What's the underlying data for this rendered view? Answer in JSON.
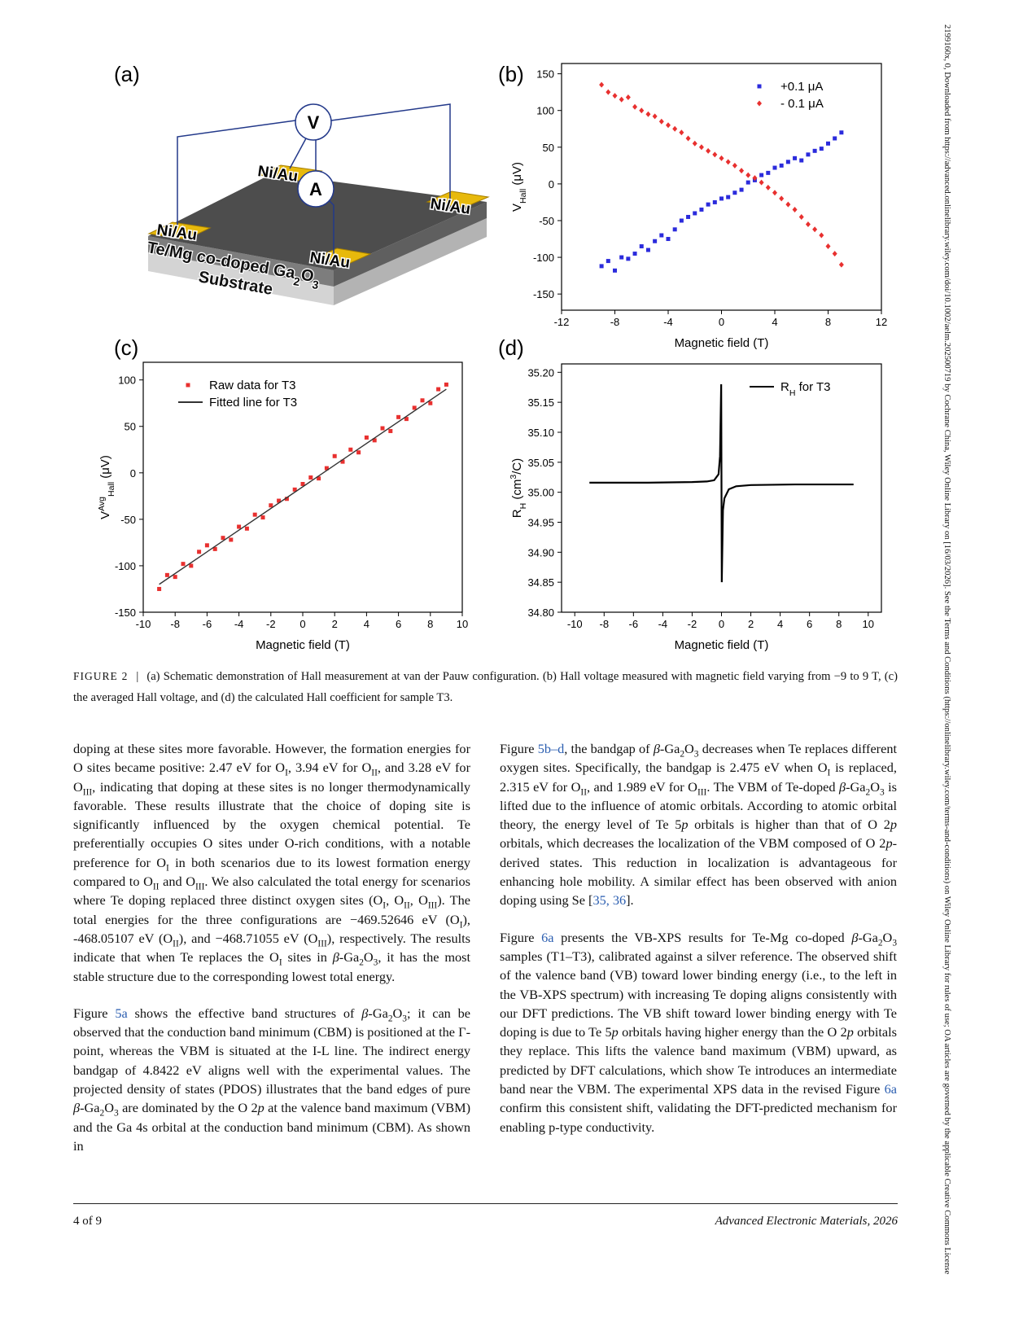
{
  "side_note": "2199160x, 0, Downloaded from https://advanced.onlinelibrary.wiley.com/doi/10.1002/aelm.202500719 by Cochrane China, Wiley Online Library on [16/03/2026]. See the Terms and Conditions (https://onlinelibrary.wiley.com/terms-and-conditions) on Wiley Online Library for rules of use; OA articles are governed by the applicable Creative Commons License",
  "figure": {
    "panel_labels": [
      "(a)",
      "(b)",
      "(c)",
      "(d)"
    ],
    "schematic": {
      "meter_v": "V",
      "meter_a": "A",
      "contacts": [
        "Ni/Au",
        "Ni/Au",
        "Ni/Au",
        "Ni/Au"
      ],
      "layer": [
        "Te/Mg co-doped Ga",
        [
          "sub",
          "2"
        ],
        "O",
        [
          "sub",
          "3"
        ]
      ],
      "substrate": "Substrate"
    }
  },
  "chart_data": [
    {
      "type": "scatter",
      "x": [
        -9,
        -8.5,
        -8,
        -7.5,
        -7,
        -6.5,
        -6,
        -5.5,
        -5,
        -4.5,
        -4,
        -3.5,
        -3,
        -2.5,
        -2,
        -1.5,
        -1,
        -0.5,
        0,
        0.5,
        1,
        1.5,
        2,
        2.5,
        3,
        3.5,
        4,
        4.5,
        5,
        5.5,
        6,
        6.5,
        7,
        7.5,
        8,
        8.5,
        9
      ],
      "xlim": [
        -12,
        12
      ],
      "xticks": [
        -12,
        -8,
        -4,
        0,
        4,
        8,
        12
      ],
      "ylim": [
        -172,
        164
      ],
      "yticks": [
        -150,
        -100,
        -50,
        0,
        50,
        100,
        150
      ],
      "xlabel": "Magnetic field (T)",
      "ylabel": [
        "V",
        [
          "sub",
          "Hall"
        ],
        " (μV)"
      ],
      "legend": "upper right",
      "series": [
        {
          "name": "+0.1 μA",
          "color": "#2b2bdc",
          "marker": "square",
          "values": [
            -112,
            -105,
            -118,
            -100,
            -102,
            -95,
            -85,
            -90,
            -78,
            -70,
            -75,
            -62,
            -50,
            -45,
            -40,
            -35,
            -28,
            -25,
            -20,
            -18,
            -12,
            -8,
            2,
            5,
            12,
            15,
            22,
            25,
            30,
            35,
            32,
            40,
            45,
            48,
            55,
            62,
            70
          ]
        },
        {
          "name": "- 0.1 μA",
          "color": "#e8302f",
          "marker": "diamond",
          "values": [
            135,
            125,
            120,
            115,
            118,
            105,
            100,
            95,
            92,
            85,
            80,
            75,
            70,
            62,
            55,
            50,
            45,
            40,
            35,
            30,
            25,
            18,
            12,
            8,
            2,
            -5,
            -12,
            -20,
            -28,
            -35,
            -45,
            -55,
            -62,
            -70,
            -85,
            -95,
            -110
          ]
        }
      ]
    },
    {
      "type": "scatter",
      "x": [
        -9,
        -8.5,
        -8,
        -7.5,
        -7,
        -6.5,
        -6,
        -5.5,
        -5,
        -4.5,
        -4,
        -3.5,
        -3,
        -2.5,
        -2,
        -1.5,
        -1,
        -0.5,
        0,
        0.5,
        1,
        1.5,
        2,
        2.5,
        3,
        3.5,
        4,
        4.5,
        5,
        5.5,
        6,
        6.5,
        7,
        7.5,
        8,
        8.5,
        9
      ],
      "xlim": [
        -10,
        10
      ],
      "xticks": [
        -10,
        -8,
        -6,
        -4,
        -2,
        0,
        2,
        4,
        6,
        8,
        10
      ],
      "ylim": [
        -150,
        119
      ],
      "yticks": [
        -150,
        -100,
        -50,
        0,
        50,
        100
      ],
      "xlabel": "Magnetic field (T)",
      "ylabel": [
        "V",
        [
          "sup",
          "Avg"
        ],
        [
          "sub",
          "Hall"
        ],
        " (μV)"
      ],
      "legend": "upper left",
      "series": [
        {
          "name": "Raw data for T3",
          "color": "#e8302f",
          "marker": "square",
          "values": [
            -125,
            -110,
            -112,
            -98,
            -100,
            -85,
            -78,
            -82,
            -70,
            -72,
            -58,
            -60,
            -45,
            -48,
            -35,
            -30,
            -28,
            -18,
            -12,
            -5,
            -6,
            5,
            18,
            12,
            25,
            22,
            38,
            35,
            48,
            45,
            60,
            58,
            70,
            78,
            75,
            90,
            95
          ]
        },
        {
          "name": "Fitted line for T3",
          "color": "#333333",
          "marker": "line",
          "x": [
            -9,
            9
          ],
          "values": [
            -120,
            90
          ]
        }
      ]
    },
    {
      "type": "line",
      "x": [
        -9,
        -5,
        -2,
        -1,
        -0.5,
        -0.2,
        -0.1,
        -0.02,
        0.02,
        0.1,
        0.2,
        0.5,
        1,
        2,
        5,
        9
      ],
      "xlim": [
        -10.9,
        10.9
      ],
      "xticks": [
        -10,
        -8,
        -6,
        -4,
        -2,
        0,
        2,
        4,
        6,
        8,
        10
      ],
      "ylim": [
        34.8,
        35.214
      ],
      "yticks": [
        {
          "value": 34.8,
          "label": "34.80"
        },
        34.85,
        {
          "value": 34.9,
          "label": "34.90"
        },
        34.95,
        {
          "value": 35,
          "label": "35.00"
        },
        35.05,
        {
          "value": 35.1,
          "label": "35.10"
        },
        35.15,
        {
          "value": 35.2,
          "label": "35.20"
        }
      ],
      "xlabel": "Magnetic field (T)",
      "ylabel": [
        "R",
        [
          "sub",
          "H"
        ],
        " (cm",
        [
          "sup",
          "3"
        ],
        "/C)"
      ],
      "legend": "upper right",
      "series": [
        {
          "name": [
            "R",
            [
              "sub",
              "H"
            ],
            " for T3"
          ],
          "color": "#000000",
          "marker": "line",
          "values": [
            35.016,
            35.016,
            35.017,
            35.018,
            35.02,
            35.03,
            35.06,
            35.18,
            34.85,
            34.97,
            34.99,
            35.005,
            35.01,
            35.012,
            35.013,
            35.013
          ]
        }
      ]
    }
  ],
  "caption": {
    "label": "FIGURE 2",
    "separator": "|",
    "text": "(a) Schematic demonstration of Hall measurement at van der Pauw configuration. (b) Hall voltage measured with magnetic field varying from −9 to 9 T, (c) the averaged Hall voltage, and (d) the calculated Hall coefficient for sample T3."
  },
  "columns": [
    [
      [
        "doping at these sites more favorable. However, the formation energies for O sites became positive: 2.47 eV for O",
        [
          "sub",
          "I"
        ],
        ", 3.94 eV for O",
        [
          "sub",
          "II"
        ],
        ", and 3.28 eV for O",
        [
          "sub",
          "III"
        ],
        ", indicating that doping at these sites is no longer thermodynamically favorable. These results illustrate that the choice of doping site is significantly influenced by the oxygen chemical potential. Te preferentially occupies O sites under O-rich conditions, with a notable preference for O",
        [
          "sub",
          "I"
        ],
        " in both scenarios due to its lowest formation energy compared to O",
        [
          "sub",
          "II"
        ],
        " and O",
        [
          "sub",
          "III"
        ],
        ". We also calculated the total energy for scenarios where Te doping replaced three distinct oxygen sites (O",
        [
          "sub",
          "I"
        ],
        ", O",
        [
          "sub",
          "II"
        ],
        ", O",
        [
          "sub",
          "III"
        ],
        "). The total energies for the three configurations are −469.52646 eV (O",
        [
          "sub",
          "I"
        ],
        "), -468.05107 eV (O",
        [
          "sub",
          "II"
        ],
        "), and −468.71055 eV (O",
        [
          "sub",
          "III"
        ],
        "), respectively. The results indicate that when Te replaces the O",
        [
          "sub",
          "I"
        ],
        " sites in ",
        [
          "i",
          "β"
        ],
        "-Ga",
        [
          "sub",
          "2"
        ],
        "O",
        [
          "sub",
          "3"
        ],
        ", it has the most stable structure due to the corresponding lowest total energy."
      ],
      [
        "Figure ",
        [
          "link",
          "5a"
        ],
        " shows the effective band structures of ",
        [
          "i",
          "β"
        ],
        "-Ga",
        [
          "sub",
          "2"
        ],
        "O",
        [
          "sub",
          "3"
        ],
        "; it can be observed that the conduction band minimum (CBM) is positioned at the Γ-point, whereas the VBM is situated at the I-L line. The indirect energy bandgap of 4.8422 eV aligns well with the experimental values. The projected density of states (PDOS) illustrates that the band edges of pure ",
        [
          "i",
          "β"
        ],
        "-Ga",
        [
          "sub",
          "2"
        ],
        "O",
        [
          "sub",
          "3"
        ],
        " are dominated by the O 2",
        [
          "i",
          "p"
        ],
        " at the valence band maximum (VBM) and the Ga 4s orbital at the conduction band minimum (CBM). As shown in"
      ]
    ],
    [
      [
        "Figure ",
        [
          "link",
          "5b–d"
        ],
        ", the bandgap of ",
        [
          "i",
          "β"
        ],
        "-Ga",
        [
          "sub",
          "2"
        ],
        "O",
        [
          "sub",
          "3"
        ],
        " decreases when Te replaces different oxygen sites. Specifically, the bandgap is 2.475 eV when O",
        [
          "sub",
          "I"
        ],
        " is replaced, 2.315 eV for O",
        [
          "sub",
          "II"
        ],
        ", and 1.989 eV for O",
        [
          "sub",
          "III"
        ],
        ". The VBM of Te-doped ",
        [
          "i",
          "β"
        ],
        "-Ga",
        [
          "sub",
          "2"
        ],
        "O",
        [
          "sub",
          "3"
        ],
        " is lifted due to the influence of atomic orbitals. According to atomic orbital theory, the energy level of Te 5",
        [
          "i",
          "p"
        ],
        " orbitals is higher than that of O 2",
        [
          "i",
          "p"
        ],
        " orbitals, which decreases the localization of the VBM composed of O 2",
        [
          "i",
          "p"
        ],
        "-derived states. This reduction in localization is advantageous for enhancing hole mobility. A similar effect has been observed with anion doping using Se [",
        [
          "link",
          "35, 36"
        ],
        "]."
      ],
      [
        "Figure ",
        [
          "link",
          "6a"
        ],
        " presents the VB-XPS results for Te-Mg co-doped ",
        [
          "i",
          "β"
        ],
        "-Ga",
        [
          "sub",
          "2"
        ],
        "O",
        [
          "sub",
          "3"
        ],
        " samples (T1–T3), calibrated against a silver reference. The observed shift of the valence band (VB) toward lower binding energy (i.e., to the left in the VB-XPS spectrum) with increasing Te doping aligns consistently with our DFT predictions. The VB shift toward lower binding energy with Te doping is due to Te 5",
        [
          "i",
          "p"
        ],
        " orbitals having higher energy than the O 2",
        [
          "i",
          "p"
        ],
        " orbitals they replace. This lifts the valence band maximum (VBM) upward, as predicted by DFT calculations, which show Te introduces an intermediate band near the VBM. The experimental XPS data in the revised Figure ",
        [
          "link",
          "6a"
        ],
        " confirm this consistent shift, validating the DFT-predicted mechanism for enabling p-type conductivity."
      ]
    ]
  ],
  "footer": {
    "page": "4 of 9",
    "journal": "Advanced Electronic Materials, 2026"
  }
}
